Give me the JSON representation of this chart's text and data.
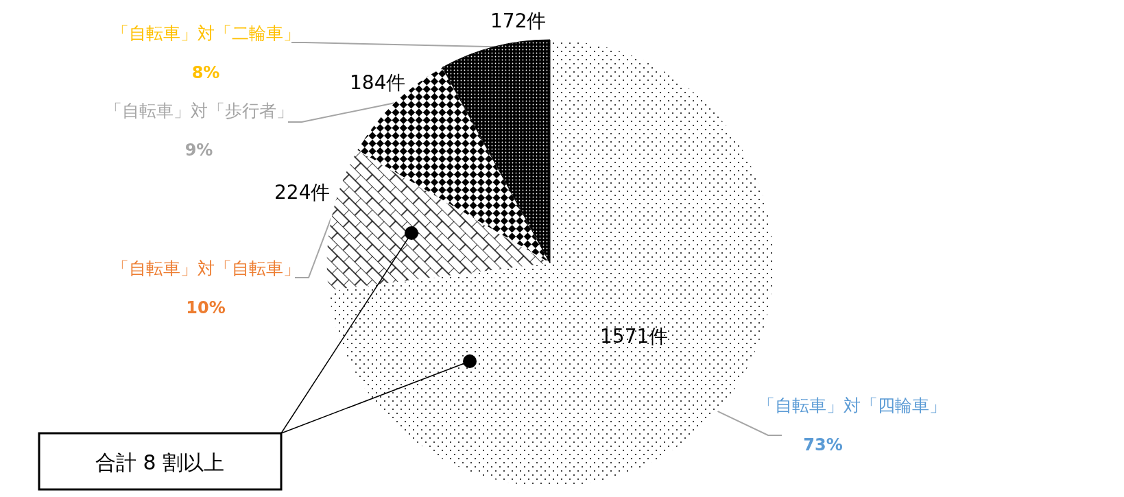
{
  "chart_data": {
    "type": "pie",
    "categories": [
      "「自転車」対「四輪車」",
      "「自転車」対「自転車」",
      "「自転車」対「歩行者」",
      "「自転車」対「二輪車」"
    ],
    "values": [
      1571,
      224,
      184,
      172
    ],
    "value_labels": [
      "1571件",
      "224件",
      "184件",
      "172件"
    ],
    "colors": [
      "#ffffff",
      "#ffffff",
      "#ffffff",
      "#000000"
    ],
    "annotations": [
      "73%",
      "10%",
      "9%",
      "8%",
      "合計 8 割以上"
    ]
  }
}
